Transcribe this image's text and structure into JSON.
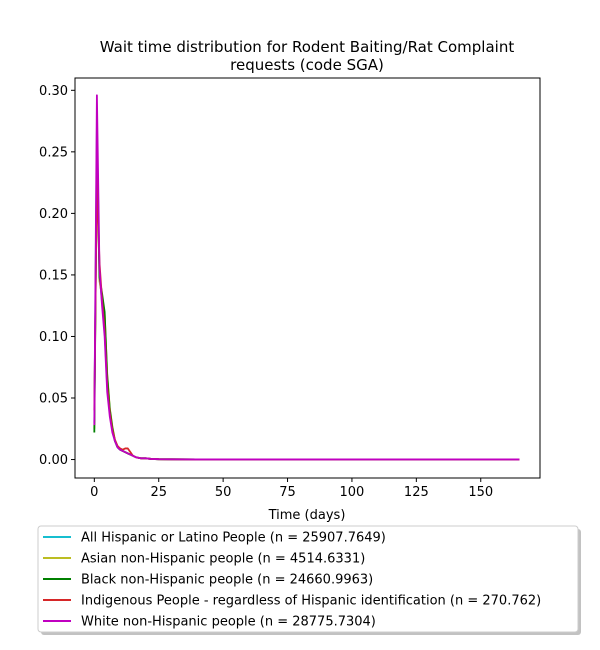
{
  "chart_data": {
    "type": "line",
    "title": [
      "Wait time distribution  for Rodent Baiting/Rat Complaint",
      "requests (code SGA)"
    ],
    "xlabel": "Time (days)",
    "ylabel": "",
    "xlim": [
      -7.5,
      173
    ],
    "ylim": [
      -0.015,
      0.31
    ],
    "xticks": [
      0,
      25,
      50,
      75,
      100,
      125,
      150
    ],
    "yticks": [
      0.0,
      0.05,
      0.1,
      0.15,
      0.2,
      0.25,
      0.3
    ],
    "ytick_labels": [
      "0.00",
      "0.05",
      "0.10",
      "0.15",
      "0.20",
      "0.25",
      "0.30"
    ],
    "grid": false,
    "legend_position": "below",
    "x": [
      0,
      1,
      2,
      3,
      4,
      5,
      6,
      7,
      8,
      9,
      10,
      11,
      12,
      13,
      14,
      15,
      16,
      17,
      18,
      19,
      20,
      22,
      25,
      30,
      40,
      60,
      80,
      100,
      120,
      140,
      165
    ],
    "series": [
      {
        "name": "All Hispanic or Latino People (n = 25907.7649)",
        "color": "#17becf",
        "values": [
          0.03,
          0.27,
          0.15,
          0.128,
          0.11,
          0.065,
          0.04,
          0.025,
          0.015,
          0.01,
          0.008,
          0.007,
          0.006,
          0.005,
          0.004,
          0.003,
          0.002,
          0.0015,
          0.001,
          0.001,
          0.001,
          0.0005,
          0.0003,
          0.0002,
          0.0001,
          0.0001,
          0.0001,
          0.0001,
          0.0001,
          0.0001,
          0.0001
        ]
      },
      {
        "name": "Asian non-Hispanic people (n = 4514.6331)",
        "color": "#bcbd22",
        "values": [
          0.025,
          0.255,
          0.145,
          0.133,
          0.118,
          0.07,
          0.042,
          0.027,
          0.016,
          0.011,
          0.008,
          0.007,
          0.006,
          0.005,
          0.004,
          0.003,
          0.002,
          0.0015,
          0.001,
          0.001,
          0.001,
          0.0005,
          0.0003,
          0.0002,
          0.0001,
          0.0001,
          0.0001,
          0.0001,
          0.0001,
          0.0001,
          0.0001
        ]
      },
      {
        "name": "Black non-Hispanic people (n = 24660.9963)",
        "color": "#008000",
        "values": [
          0.022,
          0.25,
          0.148,
          0.135,
          0.12,
          0.068,
          0.041,
          0.026,
          0.015,
          0.01,
          0.008,
          0.007,
          0.006,
          0.005,
          0.004,
          0.003,
          0.002,
          0.0015,
          0.001,
          0.001,
          0.001,
          0.0005,
          0.0003,
          0.0002,
          0.0001,
          0.0001,
          0.0001,
          0.0001,
          0.0001,
          0.0001,
          0.0001
        ]
      },
      {
        "name": "Indigenous People - regardless of Hispanic identification (n = 270.762)",
        "color": "#d62728",
        "values": [
          0.04,
          0.23,
          0.16,
          0.13,
          0.105,
          0.06,
          0.038,
          0.024,
          0.016,
          0.011,
          0.009,
          0.008,
          0.009,
          0.009,
          0.006,
          0.003,
          0.002,
          0.0015,
          0.001,
          0.001,
          0.001,
          0.0005,
          0.0003,
          0.0002,
          0.0001,
          0.0001,
          0.0001,
          0.0001,
          0.0001,
          0.0001,
          0.0001
        ]
      },
      {
        "name": "White non-Hispanic people (n = 28775.7304)",
        "color": "#c000c0",
        "values": [
          0.028,
          0.296,
          0.155,
          0.125,
          0.1,
          0.055,
          0.035,
          0.022,
          0.015,
          0.01,
          0.008,
          0.007,
          0.006,
          0.005,
          0.004,
          0.003,
          0.002,
          0.0015,
          0.001,
          0.001,
          0.001,
          0.0005,
          0.0003,
          0.0002,
          0.0001,
          0.0001,
          0.0001,
          0.0001,
          0.0001,
          0.0001,
          0.0001
        ]
      }
    ]
  }
}
